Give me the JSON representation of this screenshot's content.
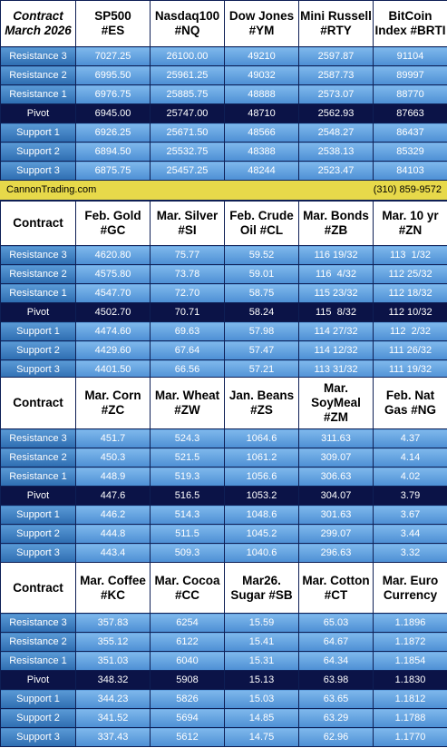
{
  "row_labels": [
    "Resistance 3",
    "Resistance 2",
    "Resistance 1",
    "Pivot",
    "Support 1",
    "Support 2",
    "Support 3"
  ],
  "banner": {
    "site": "CannonTrading.com",
    "phone": "(310) 859-9572"
  },
  "colors": {
    "row_blue": "#4d8fd4",
    "pivot_navy": "#0b1347",
    "banner_yellow": "#e7d94a",
    "border": "#0e1f55"
  },
  "blocks": [
    {
      "contract_header": "Contract\nMarch 2026",
      "columns": [
        "SP500\n#ES",
        "Nasdaq100\n#NQ",
        "Dow Jones\n#YM",
        "Mini Russell\n#RTY",
        "BitCoin\nIndex #BRTI"
      ],
      "rows": [
        [
          "7027.25",
          "26100.00",
          "49210",
          "2597.87",
          "91104"
        ],
        [
          "6995.50",
          "25961.25",
          "49032",
          "2587.73",
          "89997"
        ],
        [
          "6976.75",
          "25885.75",
          "48888",
          "2573.07",
          "88770"
        ],
        [
          "6945.00",
          "25747.00",
          "48710",
          "2562.93",
          "87663"
        ],
        [
          "6926.25",
          "25671.50",
          "48566",
          "2548.27",
          "86437"
        ],
        [
          "6894.50",
          "25532.75",
          "48388",
          "2538.13",
          "85329"
        ],
        [
          "6875.75",
          "25457.25",
          "48244",
          "2523.47",
          "84103"
        ]
      ]
    },
    {
      "contract_header": "Contract",
      "columns": [
        "Feb. Gold\n#GC",
        "Mar. Silver\n#SI",
        "Feb. Crude\nOil #CL",
        "Mar. Bonds\n#ZB",
        "Mar. 10 yr\n#ZN"
      ],
      "rows": [
        [
          "4620.80",
          "75.77",
          "59.52",
          "116 19/32",
          "113  1/32"
        ],
        [
          "4575.80",
          "73.78",
          "59.01",
          "116  4/32",
          "112 25/32"
        ],
        [
          "4547.70",
          "72.70",
          "58.75",
          "115 23/32",
          "112 18/32"
        ],
        [
          "4502.70",
          "70.71",
          "58.24",
          "115  8/32",
          "112 10/32"
        ],
        [
          "4474.60",
          "69.63",
          "57.98",
          "114 27/32",
          "112  2/32"
        ],
        [
          "4429.60",
          "67.64",
          "57.47",
          "114 12/32",
          "111 26/32"
        ],
        [
          "4401.50",
          "66.56",
          "57.21",
          "113 31/32",
          "111 19/32"
        ]
      ]
    },
    {
      "contract_header": "Contract",
      "columns": [
        "Mar. Corn\n#ZC",
        "Mar.  Wheat\n#ZW",
        "Jan. Beans\n#ZS",
        "Mar.\nSoyMeal\n#ZM",
        "Feb. Nat\nGas #NG"
      ],
      "rows": [
        [
          "451.7",
          "524.3",
          "1064.6",
          "311.63",
          "4.37"
        ],
        [
          "450.3",
          "521.5",
          "1061.2",
          "309.07",
          "4.14"
        ],
        [
          "448.9",
          "519.3",
          "1056.6",
          "306.63",
          "4.02"
        ],
        [
          "447.6",
          "516.5",
          "1053.2",
          "304.07",
          "3.79"
        ],
        [
          "446.2",
          "514.3",
          "1048.6",
          "301.63",
          "3.67"
        ],
        [
          "444.8",
          "511.5",
          "1045.2",
          "299.07",
          "3.44"
        ],
        [
          "443.4",
          "509.3",
          "1040.6",
          "296.63",
          "3.32"
        ]
      ]
    },
    {
      "contract_header": "Contract",
      "columns": [
        "Mar. Coffee\n#KC",
        "Mar. Cocoa\n#CC",
        "Mar26.\nSugar #SB",
        "Mar. Cotton\n#CT",
        "Mar. Euro\nCurrency"
      ],
      "rows": [
        [
          "357.83",
          "6254",
          "15.59",
          "65.03",
          "1.1896"
        ],
        [
          "355.12",
          "6122",
          "15.41",
          "64.67",
          "1.1872"
        ],
        [
          "351.03",
          "6040",
          "15.31",
          "64.34",
          "1.1854"
        ],
        [
          "348.32",
          "5908",
          "15.13",
          "63.98",
          "1.1830"
        ],
        [
          "344.23",
          "5826",
          "15.03",
          "63.65",
          "1.1812"
        ],
        [
          "341.52",
          "5694",
          "14.85",
          "63.29",
          "1.1788"
        ],
        [
          "337.43",
          "5612",
          "14.75",
          "62.96",
          "1.1770"
        ]
      ]
    }
  ]
}
